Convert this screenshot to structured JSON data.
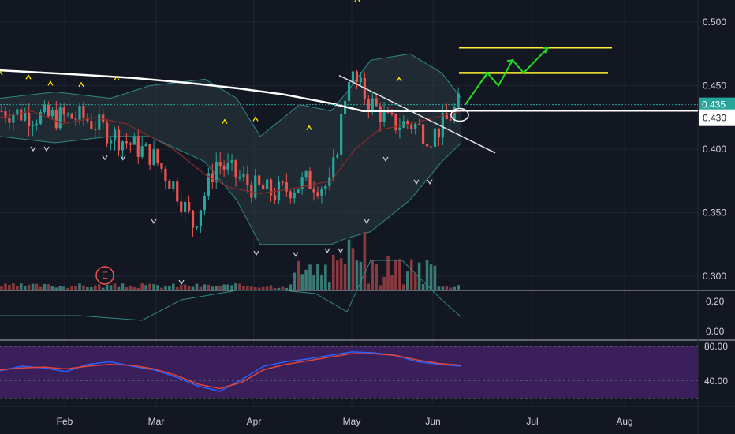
{
  "chart_data": [
    {
      "type": "candlestick",
      "panel": "price",
      "title": "",
      "ylim": [
        0.29,
        0.515
      ],
      "y_ticks": [
        "0.500",
        "0.450",
        "0.400",
        "0.350",
        "0.300"
      ],
      "x_ticks": [
        "Feb",
        "Mar",
        "Apr",
        "May",
        "Jun",
        "Jul",
        "Aug"
      ],
      "last_price_label": "0.435",
      "level_label": "0.430",
      "overlays": [
        "bollinger-bands",
        "moving-average-200",
        "moving-average-20"
      ],
      "moving_average_200": [
        0.462,
        0.459,
        0.456,
        0.452,
        0.448,
        0.443,
        0.436,
        0.43,
        0.43
      ],
      "bollinger_upper": [
        0.44,
        0.445,
        0.44,
        0.45,
        0.455,
        0.44,
        0.41,
        0.435,
        0.43,
        0.445,
        0.47,
        0.475,
        0.46,
        0.44
      ],
      "bollinger_lower": [
        0.41,
        0.405,
        0.41,
        0.41,
        0.39,
        0.36,
        0.325,
        0.325,
        0.325,
        0.33,
        0.335,
        0.36,
        0.39,
        0.405
      ],
      "annotations": {
        "trendline": [
          [
            0.43,
            0.458
          ],
          [
            0.627,
            0.397
          ]
        ],
        "yellow_lines": [
          0.48,
          0.46
        ],
        "horizontal_line": 0.43,
        "projection_arrow": [
          0.435,
          0.46,
          0.45,
          0.47,
          0.46,
          0.48
        ]
      },
      "earnings_marker": "E"
    },
    {
      "type": "bar",
      "panel": "volume",
      "y_ticks": [
        "0.20",
        "0.00"
      ]
    },
    {
      "type": "line",
      "panel": "rsi",
      "y_ticks": [
        "80.00",
        "40.00"
      ],
      "bands": [
        70,
        30
      ],
      "series": [
        {
          "color": "#2962ff",
          "values": [
            45,
            50,
            48,
            44,
            52,
            55,
            50,
            46,
            38,
            28,
            22,
            35,
            50,
            55,
            58,
            62,
            66,
            65,
            62,
            55,
            52,
            50
          ]
        },
        {
          "color": "#e0463a",
          "values": [
            46,
            48,
            49,
            47,
            50,
            52,
            51,
            47,
            40,
            30,
            25,
            32,
            46,
            52,
            56,
            60,
            64,
            64,
            62,
            57,
            53,
            51
          ]
        }
      ]
    }
  ],
  "colors": {
    "background": "#131722",
    "up": "#26a69a",
    "down": "#ef5350",
    "band_fill": "#2a3a40",
    "rsi_fill": "#3b1f5a",
    "yellow": "#ffee33",
    "green_arrow": "#22dd22"
  }
}
